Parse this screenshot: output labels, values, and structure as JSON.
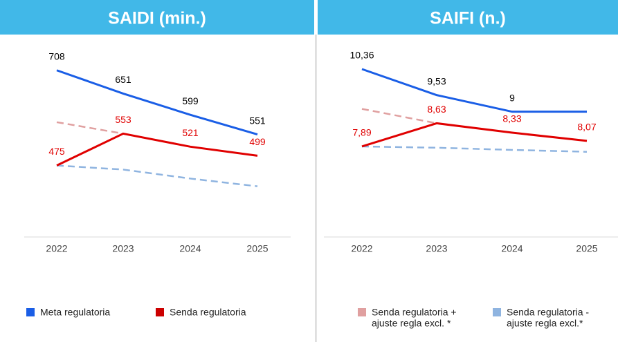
{
  "chart_data": [
    {
      "type": "line",
      "title": "SAIDI (min.)",
      "categories": [
        "2022",
        "2023",
        "2024",
        "2025"
      ],
      "ylim": [
        300,
        760
      ],
      "series": [
        {
          "color": "#1a5ee6",
          "label_color": "#000000",
          "values": [
            708,
            651,
            599,
            551
          ]
        },
        {
          "color": "#e00000",
          "label_color": "#e00000",
          "values": [
            475,
            553,
            521,
            499
          ]
        },
        {
          "color": "#e0a0a0",
          "dashed": true,
          "values": [
            581,
            553,
            null,
            null
          ]
        },
        {
          "color": "#8fb4e0",
          "dashed": true,
          "values": [
            475,
            465,
            443,
            424
          ]
        }
      ]
    },
    {
      "type": "line",
      "title": "SAIFI (n.)",
      "categories": [
        "2022",
        "2023",
        "2024",
        "2025"
      ],
      "ylim": [
        5,
        11
      ],
      "series": [
        {
          "color": "#1a5ee6",
          "label_color": "#000000",
          "values": [
            10.36,
            9.53,
            9,
            9
          ],
          "value_labels": [
            "10,36",
            "9,53",
            "9",
            null
          ]
        },
        {
          "color": "#e00000",
          "label_color": "#e00000",
          "values": [
            7.89,
            8.63,
            8.33,
            8.07
          ],
          "value_labels": [
            "7,89",
            "8,63",
            "8,33",
            "8,07"
          ]
        },
        {
          "color": "#e0a0a0",
          "dashed": true,
          "values": [
            9.09,
            8.63,
            null,
            null
          ]
        },
        {
          "color": "#8fb4e0",
          "dashed": true,
          "values": [
            7.89,
            7.85,
            7.78,
            7.72
          ]
        }
      ]
    }
  ],
  "legend": [
    {
      "items": [
        {
          "name": "Meta regulatoria",
          "color": "#1a5ee6"
        },
        {
          "name": "Senda regulatoria",
          "color": "#cc0000"
        }
      ]
    },
    {
      "items": [
        {
          "lines": [
            "Senda regulatoria +",
            "ajuste regla excl. *"
          ],
          "color": "#e0a0a0"
        },
        {
          "lines": [
            "Senda regulatoria -",
            "ajuste regla excl.*"
          ],
          "color": "#8fb4e0"
        }
      ]
    }
  ]
}
